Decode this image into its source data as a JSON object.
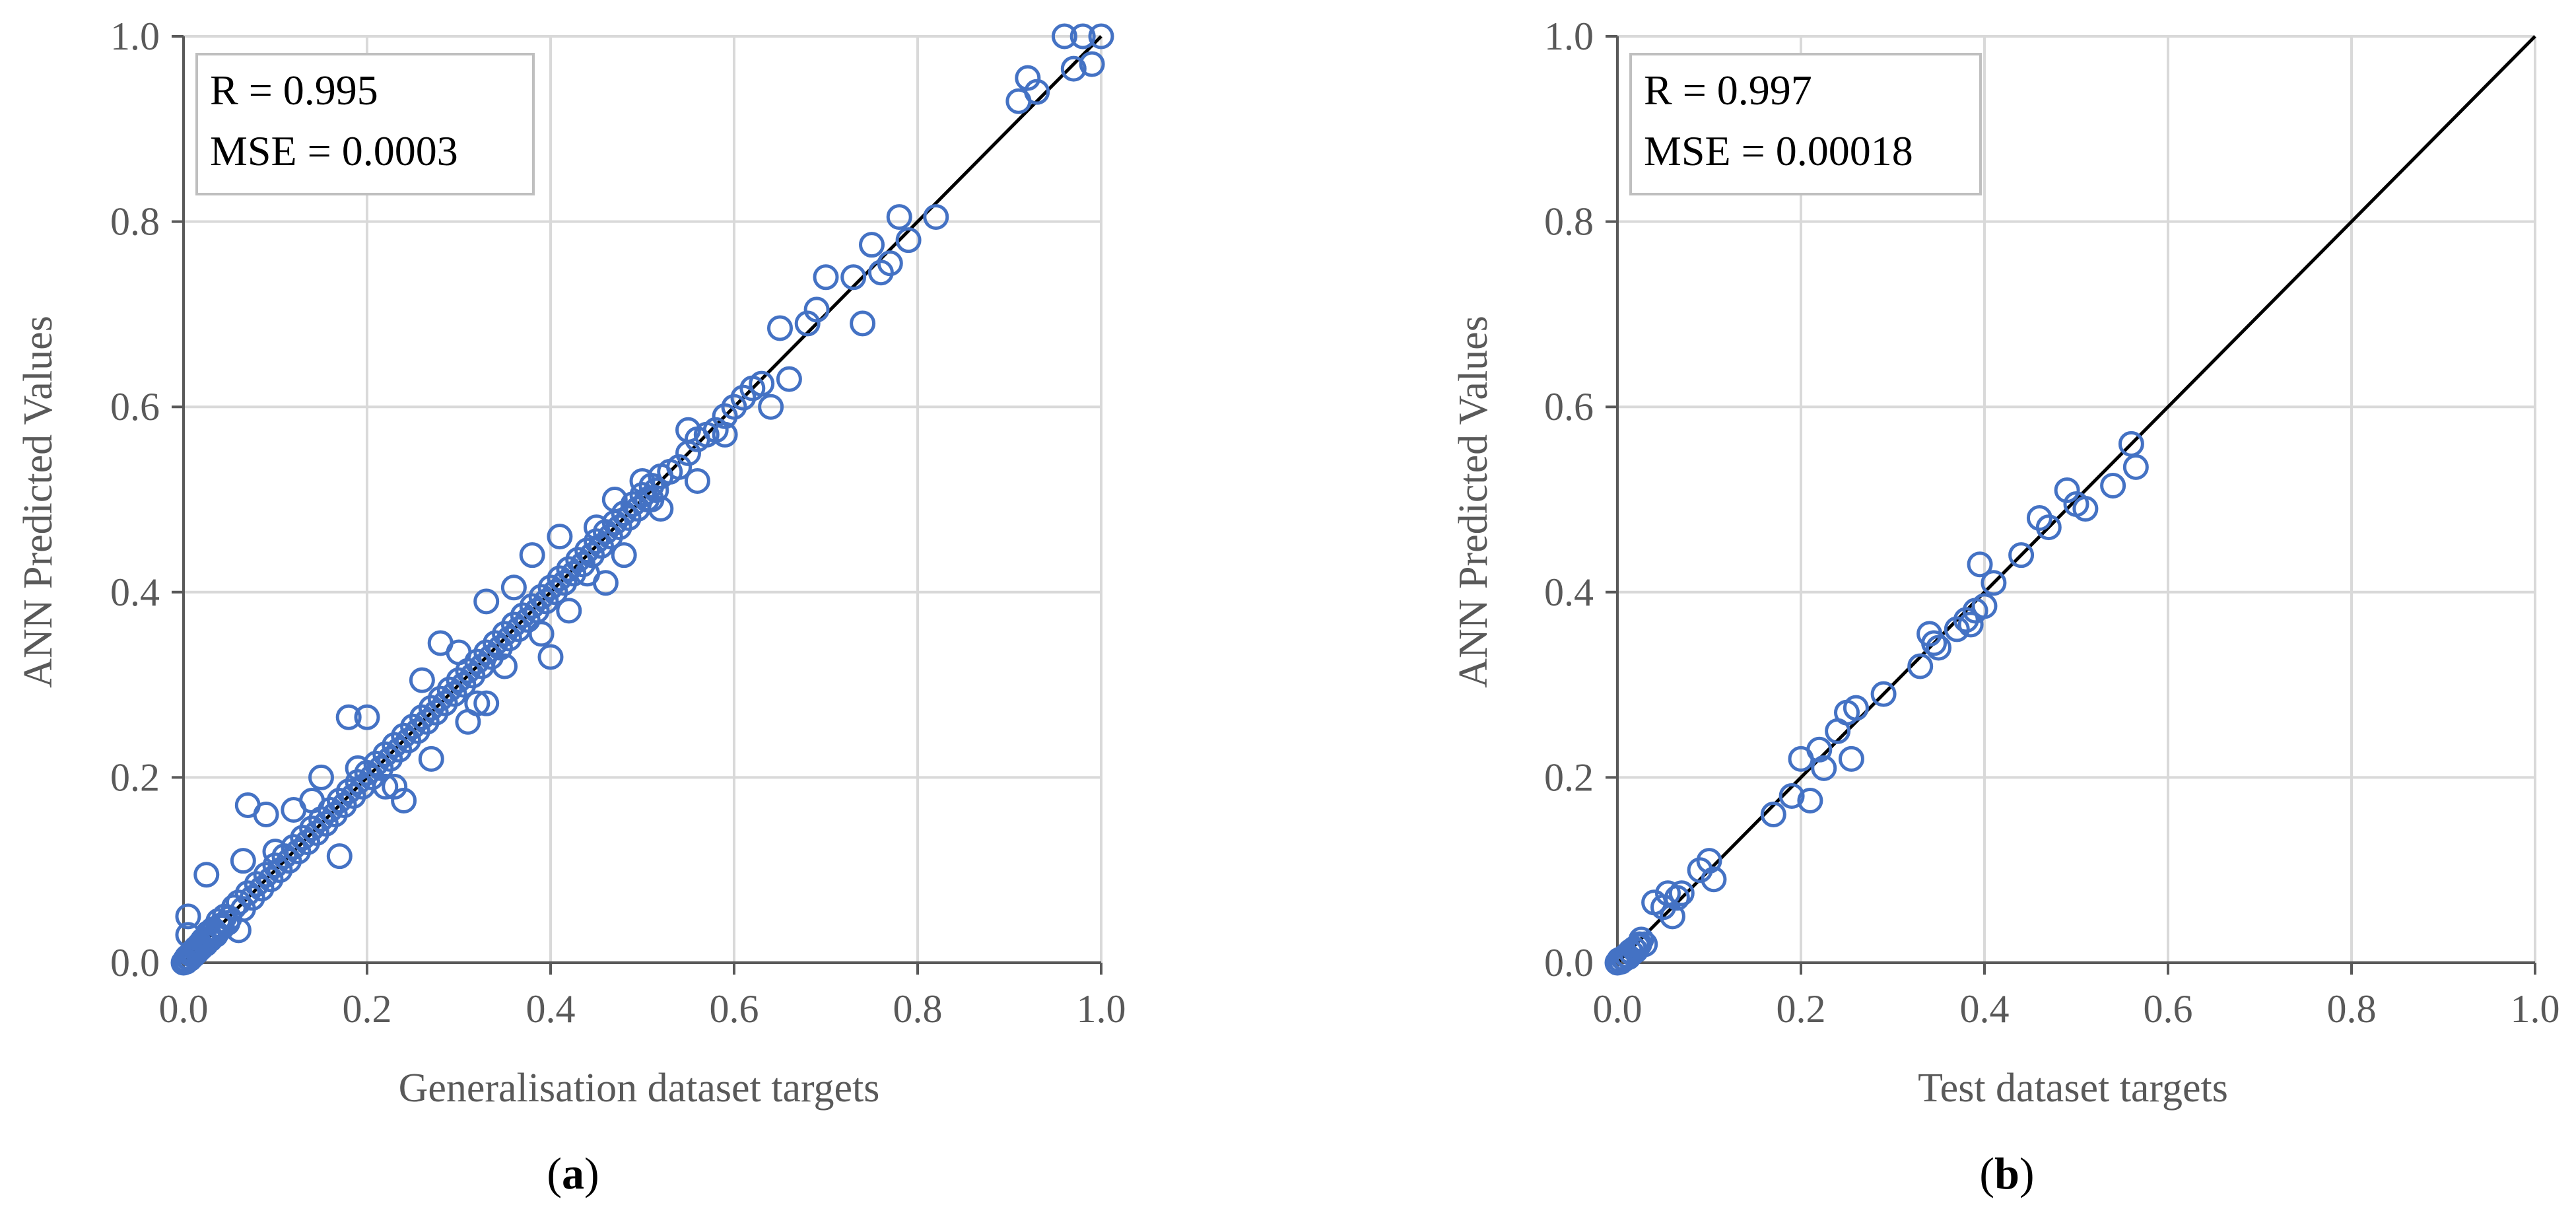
{
  "figure": {
    "panels": [
      {
        "label_open": "(",
        "label_letter": "a",
        "label_close": ")"
      },
      {
        "label_open": "(",
        "label_letter": "b",
        "label_close": ")"
      }
    ]
  },
  "chart_data": [
    {
      "type": "scatter",
      "title": "",
      "xlabel": "Generalisation dataset targets",
      "ylabel": "ANN Predicted Values",
      "xlim": [
        0,
        1.0
      ],
      "ylim": [
        0,
        1.0
      ],
      "xticks": [
        "0.0",
        "0.2",
        "0.4",
        "0.6",
        "0.8",
        "1.0"
      ],
      "yticks": [
        "0.0",
        "0.2",
        "0.4",
        "0.6",
        "0.8",
        "1.0"
      ],
      "grid": true,
      "marker": "open-circle",
      "marker_color": "#4472C4",
      "fit_line": {
        "x": [
          0,
          1.0
        ],
        "y": [
          0,
          1.0
        ],
        "color": "#000000"
      },
      "stats": [
        "R = 0.995",
        "MSE = 0.0003"
      ],
      "series": [
        {
          "x": [
            0.0,
            0.002,
            0.004,
            0.006,
            0.008,
            0.01,
            0.012,
            0.014,
            0.016,
            0.018,
            0.02,
            0.022,
            0.025,
            0.028,
            0.03,
            0.033,
            0.036,
            0.04,
            0.003,
            0.007,
            0.011,
            0.015,
            0.019,
            0.024,
            0.029,
            0.035,
            0.042,
            0.048,
            0.005,
            0.013,
            0.021,
            0.027,
            0.032,
            0.038,
            0.045,
            0.05,
            0.055,
            0.06,
            0.065,
            0.07,
            0.075,
            0.08,
            0.085,
            0.09,
            0.095,
            0.1,
            0.105,
            0.11,
            0.115,
            0.12,
            0.125,
            0.13,
            0.135,
            0.14,
            0.145,
            0.15,
            0.155,
            0.16,
            0.165,
            0.17,
            0.175,
            0.18,
            0.185,
            0.19,
            0.195,
            0.2,
            0.205,
            0.21,
            0.215,
            0.22,
            0.225,
            0.23,
            0.235,
            0.24,
            0.245,
            0.25,
            0.255,
            0.26,
            0.265,
            0.27,
            0.275,
            0.28,
            0.285,
            0.29,
            0.295,
            0.3,
            0.305,
            0.31,
            0.315,
            0.32,
            0.325,
            0.33,
            0.335,
            0.34,
            0.345,
            0.35,
            0.355,
            0.36,
            0.365,
            0.37,
            0.375,
            0.38,
            0.385,
            0.39,
            0.395,
            0.4,
            0.405,
            0.41,
            0.415,
            0.42,
            0.425,
            0.43,
            0.435,
            0.44,
            0.445,
            0.45,
            0.455,
            0.46,
            0.465,
            0.47,
            0.475,
            0.48,
            0.485,
            0.49,
            0.495,
            0.5,
            0.505,
            0.51,
            0.515,
            0.52,
            0.53,
            0.54,
            0.55,
            0.56,
            0.57,
            0.58,
            0.59,
            0.6,
            0.61,
            0.62,
            0.63,
            0.64,
            0.65,
            0.66,
            0.68,
            0.69,
            0.7,
            0.73,
            0.74,
            0.75,
            0.76,
            0.77,
            0.78,
            0.79,
            0.82,
            0.91,
            0.92,
            0.93,
            0.96,
            0.97,
            0.98,
            0.99,
            1.0,
            0.065,
            0.07,
            0.09,
            0.1,
            0.12,
            0.15,
            0.17,
            0.18,
            0.19,
            0.2,
            0.22,
            0.24,
            0.26,
            0.27,
            0.28,
            0.3,
            0.31,
            0.32,
            0.33,
            0.35,
            0.36,
            0.38,
            0.39,
            0.4,
            0.41,
            0.42,
            0.44,
            0.45,
            0.47,
            0.48,
            0.5,
            0.51,
            0.52,
            0.55,
            0.56,
            0.59,
            0.005,
            0.025,
            0.06,
            0.14,
            0.23,
            0.33,
            0.46
          ],
          "y": [
            0.0,
            0.003,
            0.006,
            0.005,
            0.009,
            0.012,
            0.01,
            0.016,
            0.014,
            0.02,
            0.018,
            0.025,
            0.022,
            0.03,
            0.027,
            0.035,
            0.032,
            0.04,
            0.001,
            0.004,
            0.008,
            0.012,
            0.016,
            0.02,
            0.025,
            0.03,
            0.038,
            0.043,
            0.05,
            0.015,
            0.024,
            0.032,
            0.036,
            0.045,
            0.05,
            0.048,
            0.06,
            0.065,
            0.058,
            0.075,
            0.07,
            0.085,
            0.08,
            0.095,
            0.09,
            0.105,
            0.1,
            0.115,
            0.11,
            0.125,
            0.12,
            0.135,
            0.13,
            0.145,
            0.14,
            0.155,
            0.15,
            0.165,
            0.16,
            0.175,
            0.17,
            0.185,
            0.18,
            0.195,
            0.19,
            0.205,
            0.2,
            0.215,
            0.21,
            0.225,
            0.22,
            0.235,
            0.23,
            0.245,
            0.24,
            0.255,
            0.25,
            0.265,
            0.26,
            0.275,
            0.27,
            0.285,
            0.28,
            0.295,
            0.29,
            0.305,
            0.3,
            0.315,
            0.31,
            0.325,
            0.32,
            0.335,
            0.33,
            0.345,
            0.34,
            0.355,
            0.35,
            0.365,
            0.36,
            0.375,
            0.37,
            0.385,
            0.38,
            0.395,
            0.39,
            0.405,
            0.4,
            0.415,
            0.41,
            0.425,
            0.42,
            0.435,
            0.43,
            0.445,
            0.44,
            0.455,
            0.45,
            0.465,
            0.46,
            0.475,
            0.47,
            0.485,
            0.48,
            0.495,
            0.49,
            0.505,
            0.5,
            0.515,
            0.51,
            0.525,
            0.53,
            0.535,
            0.55,
            0.565,
            0.57,
            0.575,
            0.59,
            0.6,
            0.61,
            0.62,
            0.625,
            0.6,
            0.685,
            0.63,
            0.69,
            0.705,
            0.74,
            0.74,
            0.69,
            0.775,
            0.745,
            0.755,
            0.805,
            0.78,
            0.805,
            0.93,
            0.955,
            0.94,
            1.0,
            0.965,
            1.0,
            0.97,
            1.0,
            0.11,
            0.17,
            0.16,
            0.12,
            0.165,
            0.2,
            0.115,
            0.265,
            0.21,
            0.265,
            0.19,
            0.175,
            0.305,
            0.22,
            0.345,
            0.335,
            0.26,
            0.28,
            0.39,
            0.32,
            0.405,
            0.44,
            0.355,
            0.33,
            0.46,
            0.38,
            0.42,
            0.47,
            0.5,
            0.44,
            0.52,
            0.5,
            0.49,
            0.575,
            0.52,
            0.57,
            0.03,
            0.095,
            0.035,
            0.175,
            0.19,
            0.28,
            0.41
          ]
        }
      ]
    },
    {
      "type": "scatter",
      "title": "",
      "xlabel": "Test dataset targets",
      "ylabel": "ANN Predicted Values",
      "xlim": [
        0,
        1.0
      ],
      "ylim": [
        0,
        1.0
      ],
      "xticks": [
        "0.0",
        "0.2",
        "0.4",
        "0.6",
        "0.8",
        "1.0"
      ],
      "yticks": [
        "0.0",
        "0.2",
        "0.4",
        "0.6",
        "0.8",
        "1.0"
      ],
      "grid": true,
      "marker": "open-circle",
      "marker_color": "#4472C4",
      "fit_line": {
        "x": [
          0,
          1.0
        ],
        "y": [
          0,
          1.0
        ],
        "color": "#000000"
      },
      "stats": [
        "R = 0.997",
        "MSE = 0.00018"
      ],
      "series": [
        {
          "x": [
            0.0,
            0.002,
            0.004,
            0.006,
            0.008,
            0.01,
            0.012,
            0.014,
            0.016,
            0.018,
            0.02,
            0.022,
            0.024,
            0.026,
            0.03,
            0.04,
            0.05,
            0.055,
            0.06,
            0.065,
            0.07,
            0.09,
            0.1,
            0.105,
            0.17,
            0.19,
            0.2,
            0.21,
            0.22,
            0.225,
            0.24,
            0.25,
            0.255,
            0.26,
            0.29,
            0.33,
            0.34,
            0.345,
            0.35,
            0.37,
            0.38,
            0.385,
            0.39,
            0.395,
            0.4,
            0.41,
            0.44,
            0.46,
            0.47,
            0.49,
            0.5,
            0.51,
            0.54,
            0.56,
            0.565
          ],
          "y": [
            0.0,
            0.003,
            0.001,
            0.005,
            0.004,
            0.008,
            0.006,
            0.012,
            0.01,
            0.015,
            0.013,
            0.018,
            0.02,
            0.025,
            0.02,
            0.065,
            0.06,
            0.075,
            0.05,
            0.07,
            0.075,
            0.1,
            0.11,
            0.09,
            0.16,
            0.18,
            0.22,
            0.175,
            0.23,
            0.21,
            0.25,
            0.27,
            0.22,
            0.275,
            0.29,
            0.32,
            0.355,
            0.345,
            0.34,
            0.36,
            0.37,
            0.365,
            0.38,
            0.43,
            0.385,
            0.41,
            0.44,
            0.48,
            0.47,
            0.51,
            0.495,
            0.49,
            0.515,
            0.56,
            0.535
          ]
        }
      ]
    }
  ]
}
